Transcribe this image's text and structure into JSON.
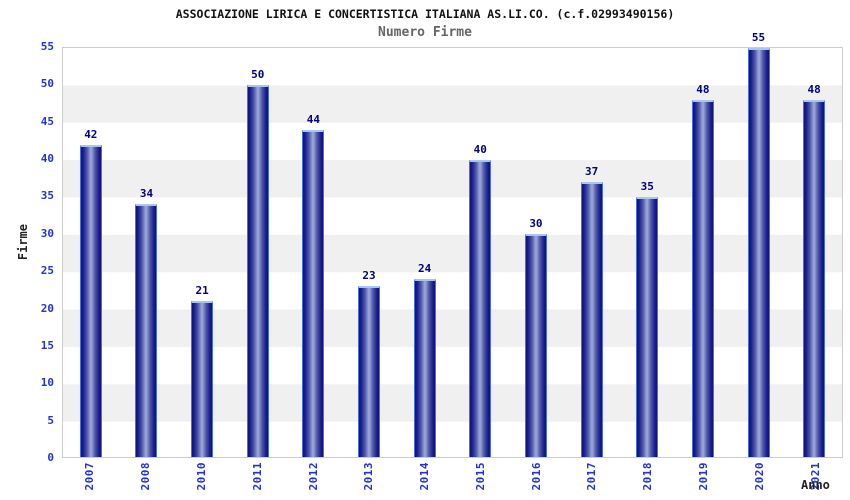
{
  "chart_data": {
    "type": "bar",
    "title": "ASSOCIAZIONE LIRICA E CONCERTISTICA ITALIANA AS.LI.CO. (c.f.02993490156)",
    "subtitle": "Numero Firme",
    "xlabel": "Anno",
    "ylabel": "Firme",
    "categories": [
      "2007",
      "2008",
      "2010",
      "2011",
      "2012",
      "2013",
      "2014",
      "2015",
      "2016",
      "2017",
      "2018",
      "2019",
      "2020",
      "2021"
    ],
    "values": [
      42,
      34,
      21,
      50,
      44,
      23,
      24,
      40,
      30,
      37,
      35,
      48,
      55,
      48
    ],
    "ylim": [
      0,
      55
    ],
    "yticks": [
      0,
      5,
      10,
      15,
      20,
      25,
      30,
      35,
      40,
      45,
      50,
      55
    ],
    "grid": "alternating-horizontal-bands-every-5-units",
    "legend_position": "none",
    "colors": {
      "bar_edge": "#111178",
      "bar_center": "#9ba5d6",
      "bar_outline": "#4a6fd8",
      "bar_top_cap": "#a8c6ee",
      "band_gray": "#f0f0f0",
      "band_white": "#ffffff",
      "plot_border": "#cccccc",
      "tick_label": "#2433cc",
      "value_label": "#000080",
      "title": "#111111",
      "subtitle": "#666666",
      "axis_label": "#222222"
    }
  }
}
